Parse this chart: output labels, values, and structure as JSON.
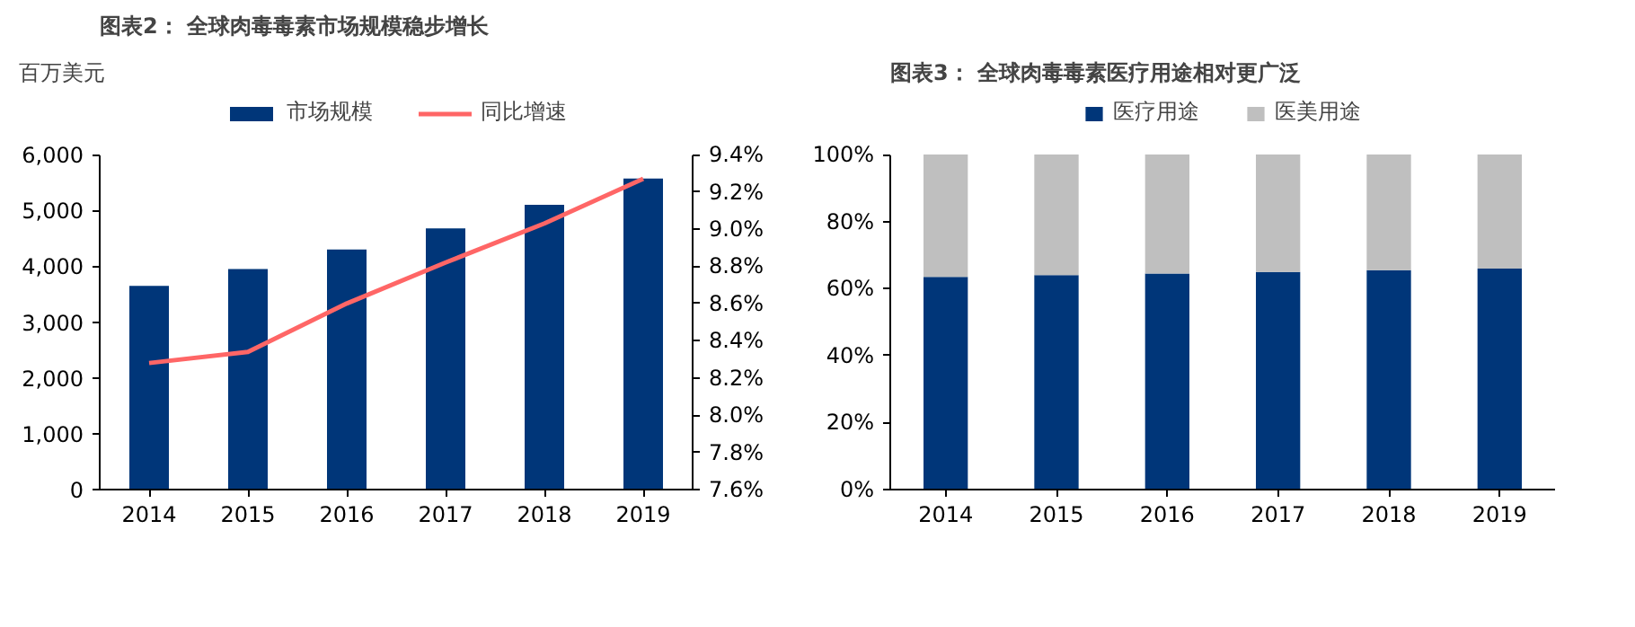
{
  "chart_data": [
    {
      "type": "bar",
      "title": "图表2： 全球肉毒毒素市场规模稳步增长",
      "ylabel": "百万美元",
      "categories": [
        "2014",
        "2015",
        "2016",
        "2017",
        "2018",
        "2019"
      ],
      "series": [
        {
          "name": "市场规模",
          "color": "#003679",
          "values": [
            3650,
            3950,
            4300,
            4680,
            5100,
            5570
          ]
        },
        {
          "name": "同比增速",
          "type": "line",
          "axis": "y2",
          "color": "#ff6666",
          "values": [
            8.28,
            8.34,
            8.6,
            8.82,
            9.03,
            9.27
          ]
        }
      ],
      "ylim": [
        0,
        6000
      ],
      "yticks": [
        0,
        {
          "value": 1000,
          "label": "1,000"
        },
        {
          "value": 2000,
          "label": "2,000"
        },
        {
          "value": 3000,
          "label": "3,000"
        },
        {
          "value": 4000,
          "label": "4,000"
        },
        {
          "value": 5000,
          "label": "5,000"
        },
        {
          "value": 6000,
          "label": "6,000"
        }
      ],
      "y2lim": [
        7.6,
        9.4
      ],
      "y2ticks": [
        {
          "value": 7.6,
          "label": "7.6%"
        },
        {
          "value": 7.8,
          "label": "7.8%"
        },
        {
          "value": 8.0,
          "label": "8.0%"
        },
        {
          "value": 8.2,
          "label": "8.2%"
        },
        {
          "value": 8.4,
          "label": "8.4%"
        },
        {
          "value": 8.6,
          "label": "8.6%"
        },
        {
          "value": 8.8,
          "label": "8.8%"
        },
        {
          "value": 9.0,
          "label": "9.0%"
        },
        {
          "value": 9.2,
          "label": "9.2%"
        },
        {
          "value": 9.4,
          "label": "9.4%"
        }
      ],
      "grid": false,
      "legend": "top"
    },
    {
      "type": "bar",
      "title": "图表3： 全球肉毒毒素医疗用途相对更广泛",
      "stacked": true,
      "categories": [
        "2014",
        "2015",
        "2016",
        "2017",
        "2018",
        "2019"
      ],
      "series": [
        {
          "name": "医疗用途",
          "color": "#003679",
          "values": [
            63.5,
            64,
            64.5,
            65,
            65.5,
            66
          ]
        },
        {
          "name": "医美用途",
          "color": "#bfbfbf",
          "values": [
            36.5,
            36,
            35.5,
            35,
            34.5,
            34
          ]
        }
      ],
      "ylim": [
        0,
        100
      ],
      "yticks": [
        {
          "value": 0,
          "label": "0%"
        },
        {
          "value": 20,
          "label": "20%"
        },
        {
          "value": 40,
          "label": "40%"
        },
        {
          "value": 60,
          "label": "60%"
        },
        {
          "value": 80,
          "label": "80%"
        },
        {
          "value": 100,
          "label": "100%"
        }
      ],
      "grid": false,
      "legend": "top"
    }
  ]
}
